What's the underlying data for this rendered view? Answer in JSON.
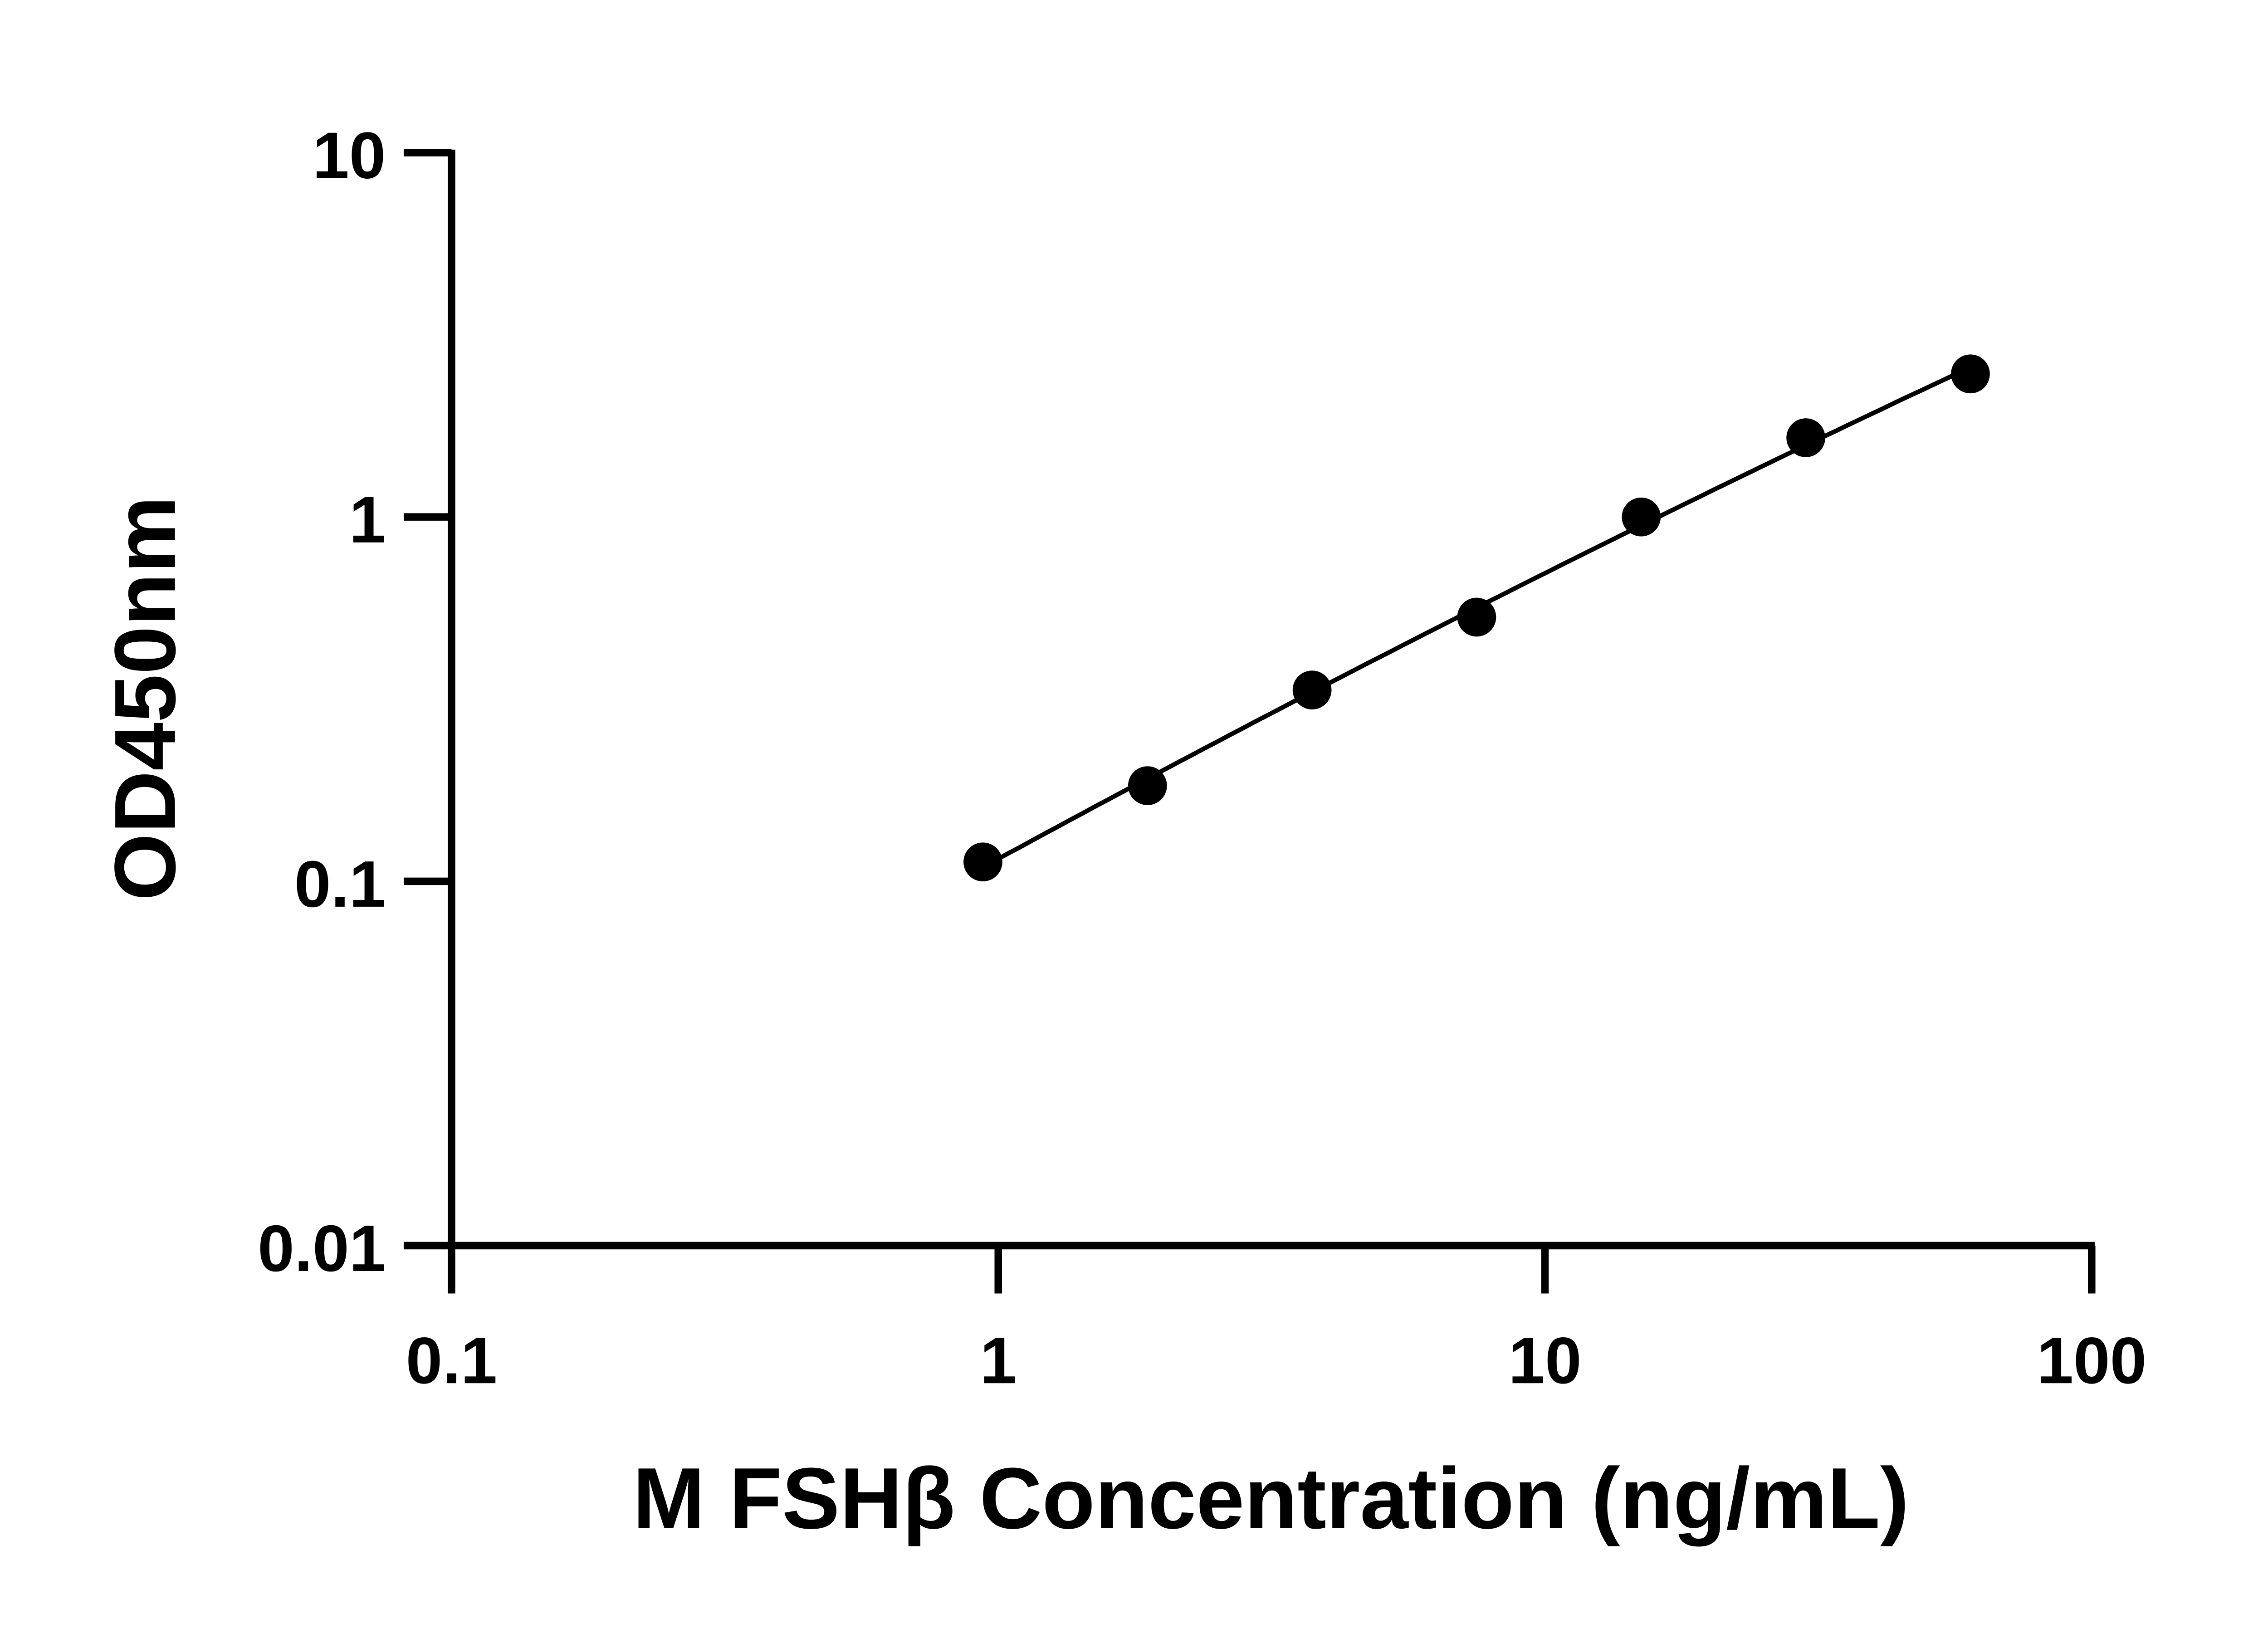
{
  "chart_data": {
    "type": "scatter",
    "xlabel": "M FSHβ Concentration (ng/mL)",
    "ylabel": "OD450nm",
    "x_scale": "log",
    "y_scale": "log",
    "xlim": [
      0.1,
      100
    ],
    "ylim": [
      0.01,
      10
    ],
    "x_ticks": [
      "0.1",
      "1",
      "10",
      "100"
    ],
    "y_ticks": [
      "0.01",
      "0.1",
      "1",
      "10"
    ],
    "grid": false,
    "x": [
      0.9375,
      1.875,
      3.75,
      7.5,
      15,
      30,
      60
    ],
    "y": [
      0.113,
      0.183,
      0.335,
      0.531,
      1.0,
      1.65,
      2.47
    ],
    "fit_line": true,
    "colors": {
      "points": "#000000",
      "line": "#000000"
    }
  }
}
